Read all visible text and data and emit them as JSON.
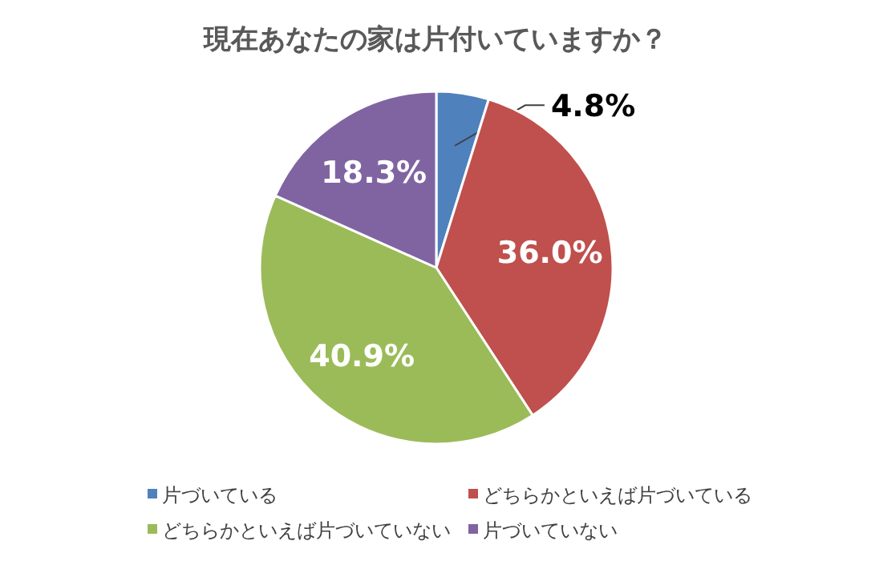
{
  "chart_data": {
    "type": "pie",
    "title": "現在あなたの家は片付いていますか？",
    "categories": [
      "片づいている",
      "どちらかといえば片づいている",
      "どちらかといえば片づいていない",
      "片づいていない"
    ],
    "values": [
      4.8,
      36.0,
      40.9,
      18.3
    ],
    "value_labels": [
      "4.8%",
      "36.0%",
      "40.9%",
      "18.3%"
    ],
    "colors": [
      "#4f81bd",
      "#c0504d",
      "#9bbb59",
      "#8064a2"
    ],
    "legend": "bottom"
  }
}
